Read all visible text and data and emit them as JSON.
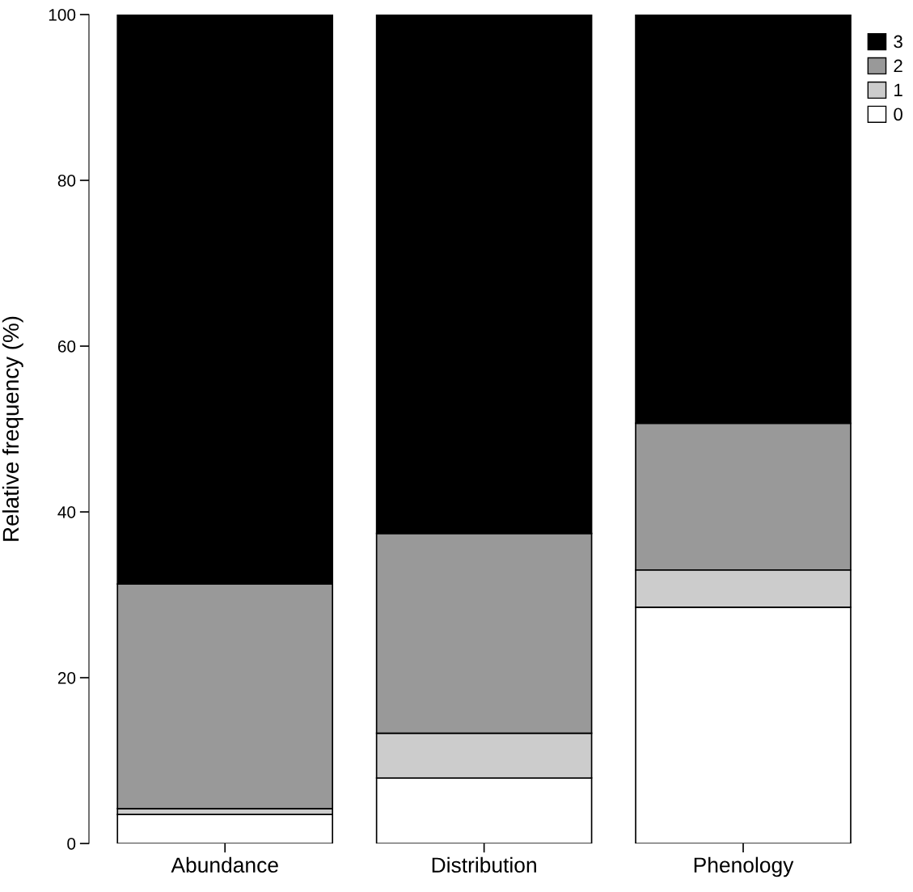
{
  "chart_data": {
    "type": "bar",
    "stacked": true,
    "ylabel": "Relative frequency (%)",
    "categories": [
      "Abundance",
      "Distribution",
      "Phenology"
    ],
    "series": [
      {
        "name": "0",
        "color": "#ffffff",
        "values": [
          3.5,
          7.9,
          28.5
        ]
      },
      {
        "name": "1",
        "color": "#cccccc",
        "values": [
          0.7,
          5.4,
          4.5
        ]
      },
      {
        "name": "2",
        "color": "#999999",
        "values": [
          27.1,
          24.1,
          17.7
        ]
      },
      {
        "name": "3",
        "color": "#000000",
        "values": [
          68.7,
          62.6,
          49.3
        ]
      }
    ],
    "ylim": [
      0,
      100
    ],
    "yticks": [
      0,
      20,
      40,
      60,
      80,
      100
    ],
    "grid": false,
    "legend": "top right"
  }
}
